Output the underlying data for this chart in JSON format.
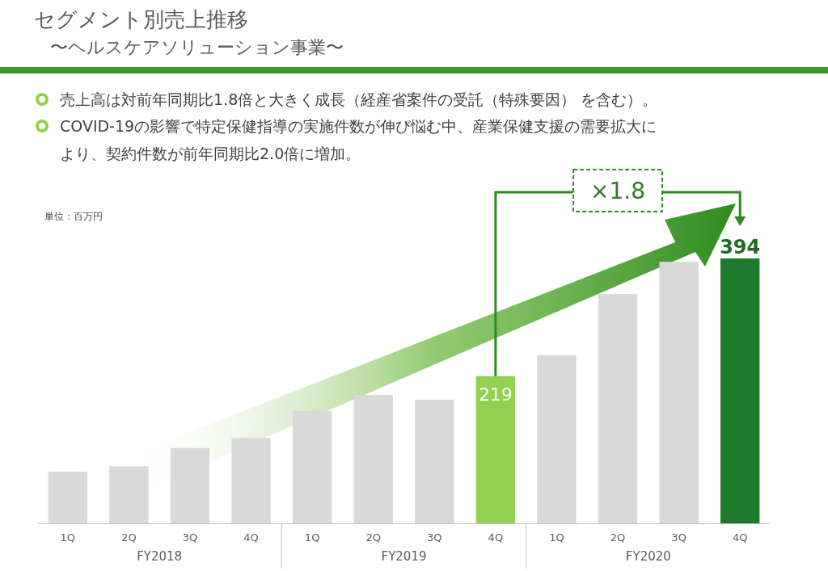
{
  "chart_data": {
    "type": "bar",
    "title": "セグメント別売上推移",
    "subtitle": "〜ヘルスケアソリューション事業〜",
    "categories": [
      "1Q",
      "2Q",
      "3Q",
      "4Q",
      "1Q",
      "2Q",
      "3Q",
      "4Q",
      "1Q",
      "2Q",
      "3Q",
      "4Q"
    ],
    "values": [
      77,
      85,
      112,
      127,
      167,
      191,
      184,
      219,
      250,
      341,
      389,
      394
    ],
    "colors": [
      "#d9d9d9",
      "#d9d9d9",
      "#d9d9d9",
      "#d9d9d9",
      "#d9d9d9",
      "#d9d9d9",
      "#d9d9d9",
      "#92d050",
      "#d9d9d9",
      "#d9d9d9",
      "#d9d9d9",
      "#1e7b2e"
    ],
    "value_labels": [
      null,
      null,
      null,
      null,
      null,
      null,
      null,
      "219",
      null,
      null,
      null,
      "394"
    ],
    "annotations": [
      "売上高は対前年同期比1.8倍と大きく成長（経産省案件の受託（特殊要因） を含む）。",
      "COVID-19の影響で特定保健指導の実施件数が伸び悩む中、産業保健支援の需要拡大に",
      "より、契約件数が前年同期比2.0倍に増加。",
      "単位：百万円",
      "FY2018",
      "FY2019",
      "FY2020",
      "×1.8"
    ]
  }
}
